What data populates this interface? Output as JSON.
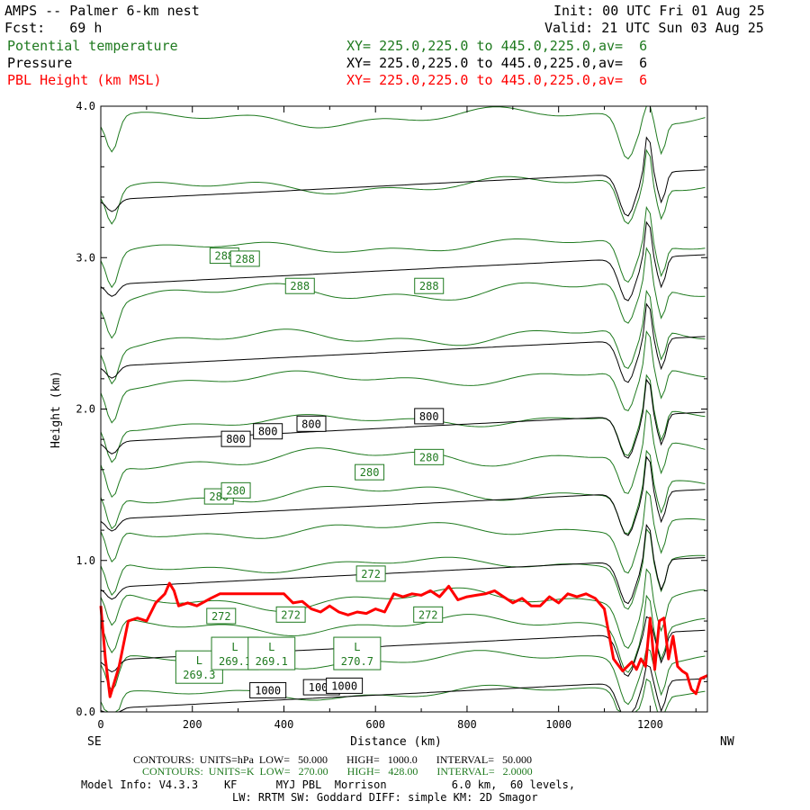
{
  "header": {
    "title": "AMPS -- Palmer 6-km nest",
    "init": "Init: 00 UTC Fri 01 Aug 25",
    "fcst": "Fcst:   69 h",
    "valid": "Valid: 21 UTC Sun 03 Aug 25",
    "field1": "Potential temperature",
    "field2": "Pressure",
    "field3": "PBL Height (km MSL)",
    "xy1": "XY= 225.0,225.0 to 445.0,225.0,av=  6",
    "xy2": "XY= 225.0,225.0 to 445.0,225.0,av=  6",
    "xy3": "XY= 225.0,225.0 to 445.0,225.0,av=  6"
  },
  "colors": {
    "theta": "#1f7a1f",
    "pressure": "#000000",
    "pbl": "#ff0000"
  },
  "chart_data": {
    "type": "line",
    "title": "",
    "xlabel": "Distance (km)",
    "ylabel": "Height (km)",
    "xlim": [
      0,
      1325
    ],
    "ylim": [
      0,
      4
    ],
    "x_ticks": [
      0,
      200,
      400,
      600,
      800,
      1000,
      1200
    ],
    "y_ticks": [
      0.0,
      1.0,
      2.0,
      3.0,
      4.0
    ],
    "x_tick_labels": [
      "0",
      "200",
      "400",
      "600",
      "800",
      "1000",
      "1200"
    ],
    "y_tick_labels": [
      "0.0",
      "1.0",
      "2.0",
      "3.0",
      "4.0"
    ],
    "left_end_label": "SE",
    "right_end_label": "NW",
    "grid": false,
    "series": [
      {
        "name": "PBL Height (km MSL)",
        "x": [
          0,
          10,
          20,
          40,
          60,
          80,
          100,
          120,
          140,
          150,
          160,
          170,
          190,
          210,
          240,
          260,
          300,
          360,
          400,
          420,
          440,
          460,
          480,
          500,
          520,
          540,
          560,
          580,
          600,
          620,
          640,
          660,
          680,
          700,
          720,
          740,
          760,
          780,
          800,
          820,
          840,
          860,
          880,
          900,
          920,
          940,
          960,
          980,
          1000,
          1020,
          1040,
          1060,
          1080,
          1100,
          1120,
          1140,
          1160,
          1170,
          1180,
          1190,
          1200,
          1210,
          1220,
          1230,
          1240,
          1250,
          1260,
          1270,
          1280,
          1290,
          1300,
          1310,
          1325
        ],
        "y": [
          0.7,
          0.35,
          0.1,
          0.3,
          0.6,
          0.62,
          0.6,
          0.72,
          0.78,
          0.85,
          0.8,
          0.7,
          0.72,
          0.7,
          0.75,
          0.78,
          0.78,
          0.78,
          0.78,
          0.72,
          0.73,
          0.68,
          0.66,
          0.7,
          0.66,
          0.64,
          0.66,
          0.65,
          0.68,
          0.66,
          0.78,
          0.76,
          0.78,
          0.77,
          0.8,
          0.76,
          0.83,
          0.74,
          0.76,
          0.77,
          0.78,
          0.8,
          0.76,
          0.72,
          0.75,
          0.7,
          0.7,
          0.76,
          0.72,
          0.78,
          0.76,
          0.78,
          0.75,
          0.68,
          0.35,
          0.27,
          0.33,
          0.28,
          0.35,
          0.3,
          0.62,
          0.28,
          0.6,
          0.62,
          0.35,
          0.5,
          0.3,
          0.27,
          0.25,
          0.15,
          0.12,
          0.22,
          0.24
        ]
      }
    ],
    "pressure_contours": {
      "units": "hPa",
      "low": "50.000",
      "high": "1000.0",
      "interval": "50.000",
      "labels": [
        "1000",
        "1000",
        "1000",
        "800",
        "800",
        "800",
        "800"
      ]
    },
    "theta_contours": {
      "units": "K",
      "low": "270.00",
      "high": "428.00",
      "interval": "2.0000",
      "labels": [
        "288",
        "288",
        "288",
        "288",
        "280",
        "280",
        "280",
        "280",
        "272",
        "272",
        "272",
        "272"
      ]
    },
    "minima": [
      {
        "symbol": "L",
        "value": "269.3"
      },
      {
        "symbol": "L",
        "value": "269.1"
      },
      {
        "symbol": "L",
        "value": "269.1"
      },
      {
        "symbol": "L",
        "value": "270.7"
      }
    ]
  },
  "footer": {
    "line1": "CONTOURS:  UNITS=hPa  LOW=   50.000       HIGH=   1000.0       INTERVAL=   50.000",
    "line2": "CONTOURS:  UNITS=K  LOW=   270.00       HIGH=   428.00       INTERVAL=   2.0000",
    "model1": "Model Info: V4.3.3    KF      MYJ PBL  Morrison          6.0 km,  60 levels,",
    "model2": "LW: RRTM SW: Goddard DIFF: simple KM: 2D Smagor"
  }
}
